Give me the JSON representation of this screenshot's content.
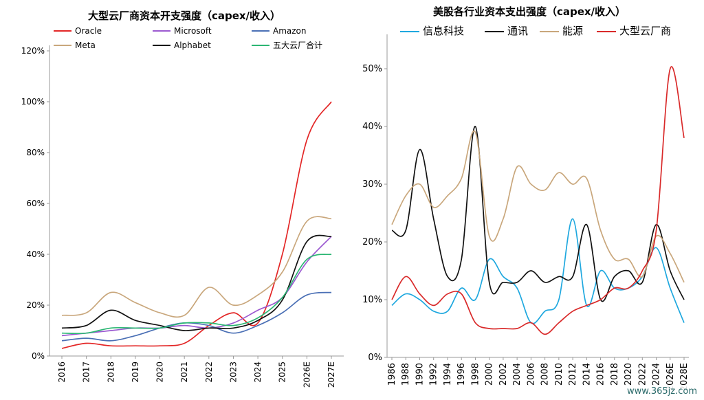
{
  "watermark": "www.365jz.com",
  "chart_data": [
    {
      "type": "line",
      "title": "大型云厂商资本开支强度（capex/收入）",
      "x": [
        "2016",
        "2017",
        "2018",
        "2019",
        "2020",
        "2021",
        "2022",
        "2023",
        "2024",
        "2025",
        "2026E",
        "2027E"
      ],
      "ylim": [
        0,
        120
      ],
      "yticks": [
        "0%",
        "20%",
        "40%",
        "60%",
        "80%",
        "100%",
        "120%"
      ],
      "grid": false,
      "legend_placement": "top",
      "series": [
        {
          "name": "Oracle",
          "color": "#e32626",
          "values": [
            3,
            5,
            4,
            4,
            4,
            5,
            12,
            17,
            13,
            40,
            85,
            100
          ]
        },
        {
          "name": "Microsoft",
          "color": "#9b59d0",
          "values": [
            8,
            9,
            10,
            11,
            11,
            12,
            11,
            13,
            18,
            23,
            37,
            47
          ]
        },
        {
          "name": "Amazon",
          "color": "#4a6fb5",
          "values": [
            6,
            7,
            6,
            8,
            11,
            13,
            12,
            9,
            12,
            17,
            24,
            25
          ]
        },
        {
          "name": "Meta",
          "color": "#c9a77c",
          "values": [
            16,
            17,
            25,
            21,
            17,
            16,
            27,
            20,
            24,
            33,
            53,
            54
          ]
        },
        {
          "name": "Alphabet",
          "color": "#111111",
          "values": [
            11,
            12,
            18,
            14,
            12,
            10,
            11,
            11,
            14,
            22,
            45,
            47
          ]
        },
        {
          "name": "五大云厂合计",
          "color": "#2bb673",
          "values": [
            9,
            9,
            11,
            11,
            11,
            13,
            13,
            12,
            15,
            23,
            38,
            40
          ]
        }
      ]
    },
    {
      "type": "line",
      "title": "美股各行业资本支出强度（capex/收入）",
      "x": [
        "1986",
        "1988",
        "1990",
        "1992",
        "1994",
        "1996",
        "1998",
        "2000",
        "2002",
        "2004",
        "2006",
        "2008",
        "2010",
        "2012",
        "2014",
        "2016",
        "2018",
        "2020",
        "2022",
        "2024",
        "2026E",
        "2028E"
      ],
      "ylim": [
        0,
        55
      ],
      "yticks": [
        "0%",
        "10%",
        "20%",
        "30%",
        "40%",
        "50%"
      ],
      "grid": false,
      "legend_placement": "top",
      "series": [
        {
          "name": "信息科技",
          "color": "#1fa8df",
          "values": [
            9,
            11,
            10,
            8,
            8,
            12,
            10,
            17,
            14,
            12,
            6,
            8,
            10,
            24,
            9,
            15,
            12,
            12,
            14,
            19,
            12,
            6
          ]
        },
        {
          "name": "通讯",
          "color": "#111111",
          "values": [
            22,
            22,
            36,
            24,
            14,
            17,
            40,
            13,
            13,
            13,
            15,
            13,
            14,
            14,
            23,
            10,
            14,
            15,
            13,
            23,
            15,
            10
          ]
        },
        {
          "name": "能源",
          "color": "#c9a77c",
          "values": [
            23,
            28,
            30,
            26,
            28,
            31,
            39,
            21,
            24,
            33,
            30,
            29,
            32,
            30,
            31,
            22,
            17,
            17,
            14,
            21,
            18,
            13
          ]
        },
        {
          "name": "大型云厂商",
          "color": "#d92a2a",
          "values": [
            10,
            14,
            11,
            9,
            11,
            11,
            6,
            5,
            5,
            5,
            6,
            4,
            6,
            8,
            9,
            10,
            12,
            12,
            15,
            22,
            50,
            38
          ]
        }
      ]
    }
  ]
}
